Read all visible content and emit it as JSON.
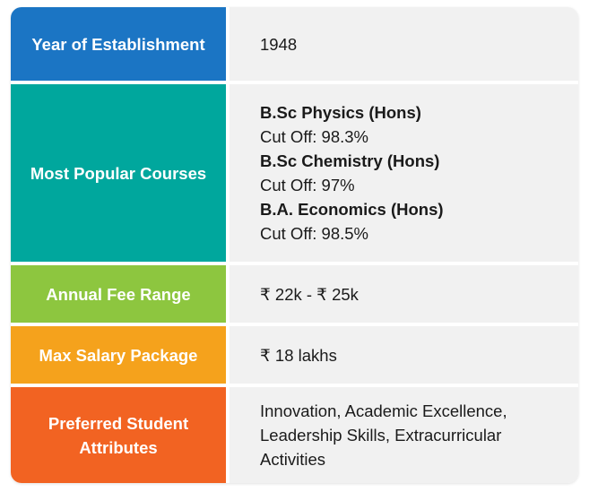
{
  "colors": {
    "year_of_establishment": "#1b75c4",
    "most_popular_courses": "#00a79d",
    "annual_fee_range": "#8dc63f",
    "max_salary_package": "#f5a21c",
    "preferred_student_attributes": "#f26322",
    "value_background": "#f1f1f1"
  },
  "rows": {
    "year": {
      "label": "Year of Establishment",
      "value": "1948"
    },
    "courses": {
      "label": "Most Popular Courses",
      "items": [
        {
          "name": "B.Sc Physics (Hons)",
          "cutoff": "Cut Off: 98.3%"
        },
        {
          "name": "B.Sc Chemistry (Hons)",
          "cutoff": "Cut Off: 97%"
        },
        {
          "name": "B.A. Economics (Hons)",
          "cutoff": "Cut Off: 98.5%"
        }
      ]
    },
    "fee": {
      "label": "Annual Fee Range",
      "value": "₹ 22k - ₹ 25k"
    },
    "salary": {
      "label": "Max Salary Package",
      "value": "₹ 18 lakhs"
    },
    "attributes": {
      "label": "Preferred Student Attributes",
      "value": "Innovation, Academic Excellence, Leadership Skills, Extracurricular Activities"
    }
  }
}
